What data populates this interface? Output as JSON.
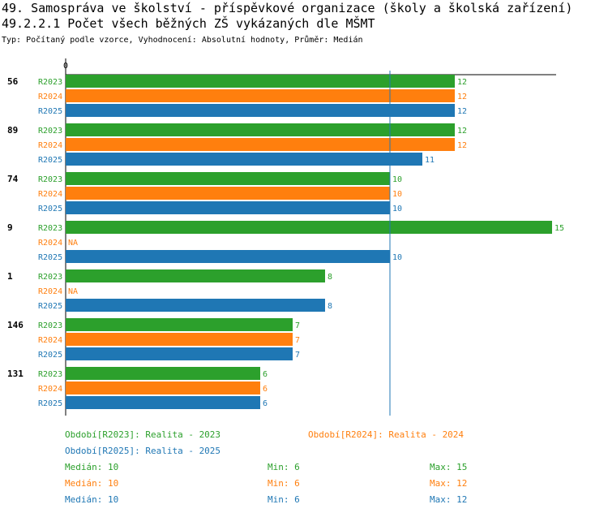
{
  "title_line1": "49. Samospráva ve školství - příspěvkové organizace (školy a školská zařízení)",
  "title_line2": "49.2.2.1 Počet všech běžných ZŠ vykázaných dle MŠMT",
  "subtitle": "Typ: Počítaný podle vzorce, Vyhodnocení: Absolutní hodnoty, Průměr: Medián",
  "colors": {
    "R2023": "#2ca02c",
    "R2024": "#ff7f0e",
    "R2025": "#1f77b4",
    "median_line": "#1f77b4"
  },
  "chart_data": {
    "type": "bar",
    "orientation": "horizontal",
    "axis_zero_label": "0",
    "xlim": [
      0,
      15
    ],
    "median_line_value": 10,
    "na_label": "NA",
    "categories": [
      "56",
      "89",
      "74",
      "9",
      "1",
      "146",
      "131"
    ],
    "series": [
      {
        "name": "R2023",
        "values": [
          12,
          12,
          10,
          15,
          8,
          7,
          6
        ]
      },
      {
        "name": "R2024",
        "values": [
          12,
          12,
          10,
          null,
          null,
          7,
          6
        ]
      },
      {
        "name": "R2025",
        "values": [
          12,
          11,
          10,
          10,
          8,
          7,
          6
        ]
      }
    ]
  },
  "legend": {
    "periods": [
      {
        "series": "R2023",
        "text": "Období[R2023]: Realita - 2023"
      },
      {
        "series": "R2024",
        "text": "Období[R2024]: Realita - 2024"
      },
      {
        "series": "R2025",
        "text": "Období[R2025]: Realita - 2025"
      }
    ],
    "stats": [
      {
        "series": "R2023",
        "median": "Medián: 10",
        "min": "Min: 6",
        "max": "Max: 15"
      },
      {
        "series": "R2024",
        "median": "Medián: 10",
        "min": "Min: 6",
        "max": "Max: 12"
      },
      {
        "series": "R2025",
        "median": "Medián: 10",
        "min": "Min: 6",
        "max": "Max: 12"
      }
    ]
  }
}
